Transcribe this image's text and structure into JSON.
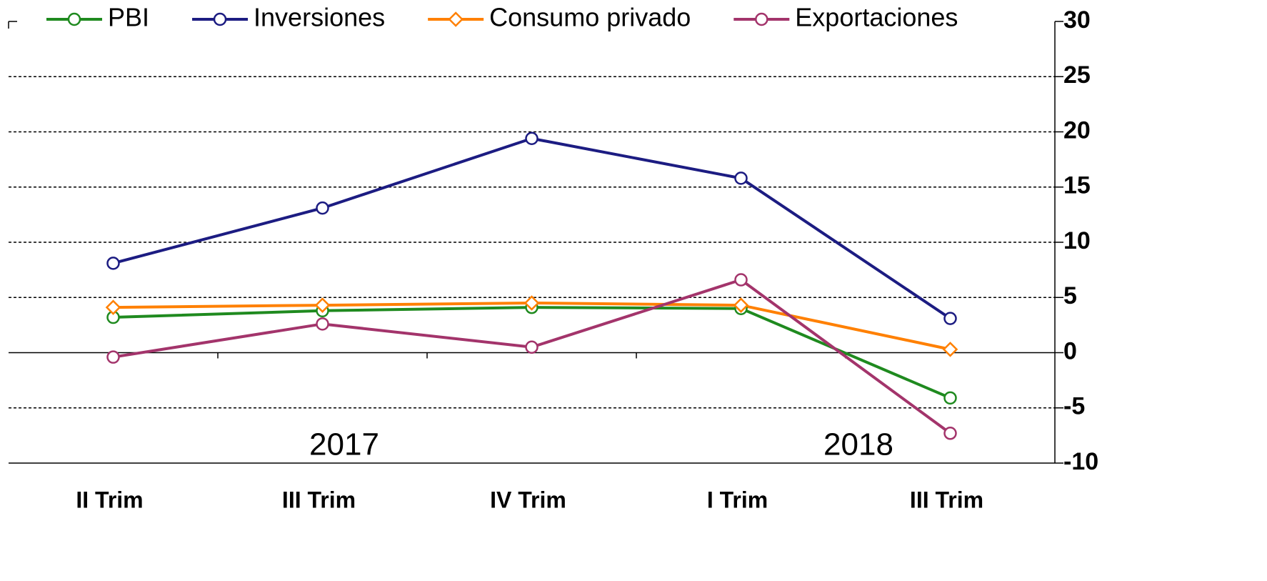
{
  "chart_data": {
    "type": "line",
    "categories": [
      "II Trim",
      "III Trim",
      "IV Trim",
      "I Trim",
      "III Trim"
    ],
    "series": [
      {
        "name": "PBI",
        "color": "#1f8a1f",
        "marker": "circle",
        "values": [
          3.2,
          3.8,
          4.1,
          4.0,
          -4.1
        ]
      },
      {
        "name": "Inversiones",
        "color": "#1c1c82",
        "marker": "circle",
        "values": [
          8.1,
          13.1,
          19.4,
          15.8,
          3.1
        ]
      },
      {
        "name": "Consumo privado",
        "color": "#ff8000",
        "marker": "diamond",
        "values": [
          4.1,
          4.3,
          4.5,
          4.3,
          0.3
        ]
      },
      {
        "name": "Exportaciones",
        "color": "#a3346b",
        "marker": "circle",
        "values": [
          -0.4,
          2.6,
          0.5,
          6.6,
          -7.3
        ]
      }
    ],
    "annotations": [
      "2017",
      "2018"
    ],
    "ylim": [
      -10,
      30
    ],
    "yticks": [
      -10,
      -5,
      0,
      5,
      10,
      15,
      20,
      25,
      30
    ],
    "grid": true,
    "y_axis_side": "right",
    "legend": "top"
  }
}
